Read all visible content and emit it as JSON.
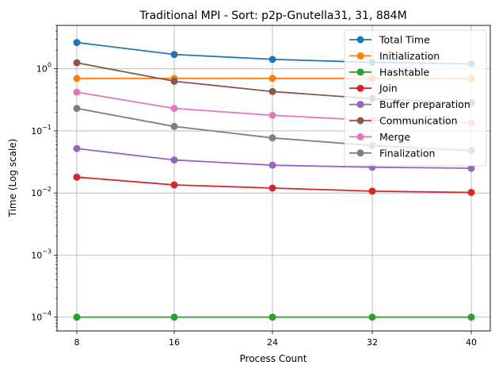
{
  "chart_data": {
    "type": "line",
    "title": "Traditional MPI - Sort: p2p-Gnutella31, 31, 884M",
    "xlabel": "Process Count",
    "ylabel": "Time (Log scale)",
    "yscale": "log",
    "x": [
      8,
      16,
      24,
      32,
      40
    ],
    "x_tick_labels": [
      "8",
      "16",
      "24",
      "32",
      "40"
    ],
    "y_ticks": [
      0.0001,
      0.001,
      0.01,
      0.1,
      1
    ],
    "y_tick_labels": [
      [
        "10",
        "−4"
      ],
      [
        "10",
        "−3"
      ],
      [
        "10",
        "−2"
      ],
      [
        "10",
        "−1"
      ],
      [
        "10",
        "0"
      ]
    ],
    "ylim": [
      6e-05,
      5
    ],
    "grid": true,
    "legend_position": "top-right",
    "series": [
      {
        "name": "Total Time",
        "color": "#1f77b4",
        "values": [
          2.65,
          1.7,
          1.42,
          1.27,
          1.2
        ]
      },
      {
        "name": "Initialization",
        "color": "#ff7f0e",
        "values": [
          0.7,
          0.7,
          0.7,
          0.7,
          0.7
        ]
      },
      {
        "name": "Hashtable",
        "color": "#2ca02c",
        "values": [
          0.0001,
          0.0001,
          0.0001,
          0.0001,
          0.0001
        ]
      },
      {
        "name": "Join",
        "color": "#d62728",
        "values": [
          0.018,
          0.0135,
          0.012,
          0.0107,
          0.0102
        ]
      },
      {
        "name": "Buffer preparation",
        "color": "#9467bd",
        "values": [
          0.052,
          0.034,
          0.028,
          0.026,
          0.025
        ]
      },
      {
        "name": "Communication",
        "color": "#8c564b",
        "values": [
          1.25,
          0.63,
          0.43,
          0.33,
          0.28
        ]
      },
      {
        "name": "Merge",
        "color": "#e377c2",
        "values": [
          0.42,
          0.23,
          0.178,
          0.148,
          0.135
        ]
      },
      {
        "name": "Finalization",
        "color": "#7f7f7f",
        "values": [
          0.23,
          0.118,
          0.077,
          0.058,
          0.048
        ]
      }
    ]
  }
}
